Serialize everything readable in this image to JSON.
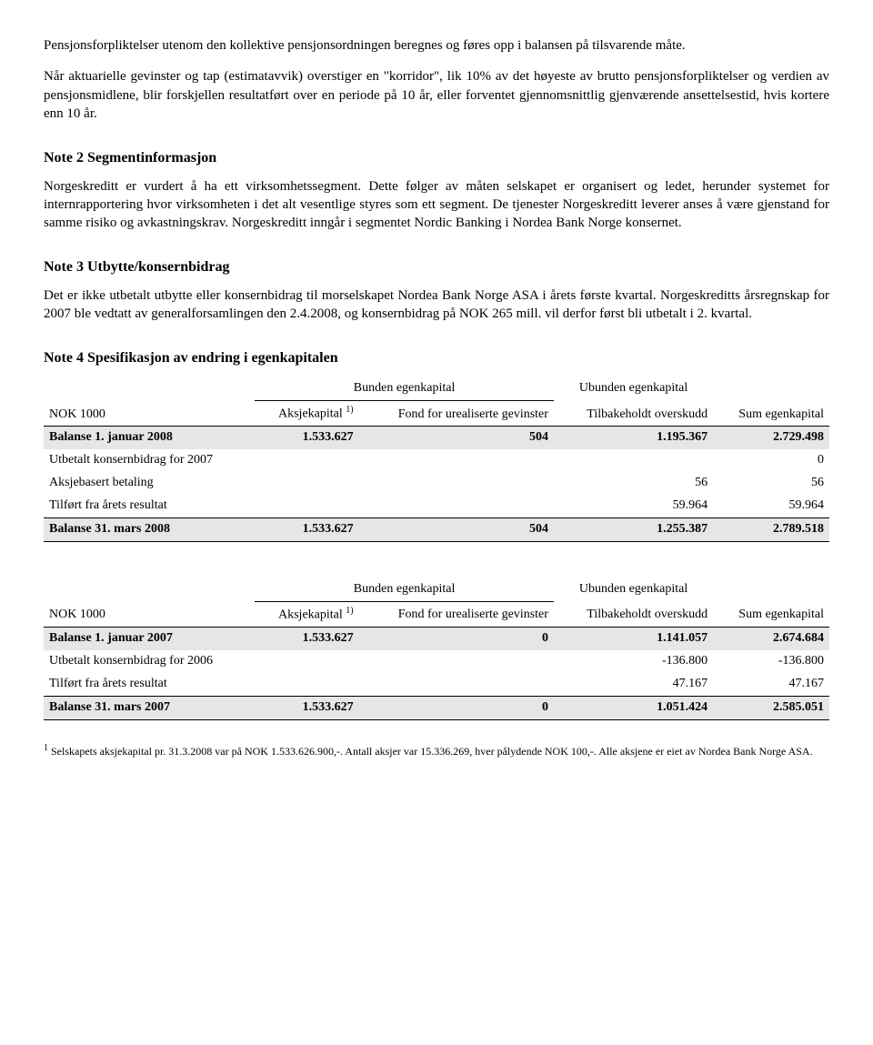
{
  "intro": {
    "p1": "Pensjonsforpliktelser utenom den kollektive pensjonsordningen beregnes og føres opp i balansen på tilsvarende måte.",
    "p2": "Når aktuarielle gevinster og tap (estimatavvik) overstiger en \"korridor\", lik 10% av det høyeste av brutto pensjonsforpliktelser og verdien av pensjonsmidlene, blir forskjellen resultatført over en periode på 10 år, eller forventet gjennomsnittlig gjenværende ansettelsestid, hvis kortere enn 10 år."
  },
  "note2": {
    "title": "Note 2 Segmentinformasjon",
    "body": "Norgeskreditt er vurdert å ha ett virksomhetssegment. Dette følger av måten selskapet er organisert og ledet, herunder systemet for internrapportering hvor virksomheten i det alt vesentlige styres som ett segment. De tjenester Norgeskreditt leverer anses å være gjenstand for samme risiko og avkastningskrav. Norgeskreditt inngår i segmentet Nordic Banking i Nordea Bank Norge konsernet."
  },
  "note3": {
    "title": "Note 3 Utbytte/konsernbidrag",
    "body": "Det er ikke utbetalt utbytte eller konsernbidrag til morselskapet Nordea Bank Norge ASA i årets første kvartal.  Norgeskreditts årsregnskap for 2007 ble vedtatt av generalforsamlingen den 2.4.2008, og konsernbidrag på NOK 265 mill. vil derfor først bli utbetalt i 2. kvartal."
  },
  "note4": {
    "title": "Note 4 Spesifikasjon av endring i egenkapitalen",
    "headers": {
      "nok": "NOK 1000",
      "bunden": "Bunden egenkapital",
      "ubunden": "Ubunden egenkapital",
      "aksje": "Aksjekapital",
      "aksje_sup": "1)",
      "fond": "Fond for urealiserte gevinster",
      "tilbake": "Tilbakeholdt overskudd",
      "sum": "Sum egenkapital"
    },
    "table1": {
      "rows": [
        {
          "label": "Balanse 1. januar 2008",
          "c1": "1.533.627",
          "c2": "504",
          "c3": "1.195.367",
          "c4": "2.729.498",
          "bold": true,
          "shade": true
        },
        {
          "label": "Utbetalt konsernbidrag for 2007",
          "c1": "",
          "c2": "",
          "c3": "",
          "c4": "0"
        },
        {
          "label": "Aksjebasert betaling",
          "c1": "",
          "c2": "",
          "c3": "56",
          "c4": "56"
        },
        {
          "label": "Tilført fra årets resultat",
          "c1": "",
          "c2": "",
          "c3": "59.964",
          "c4": "59.964"
        },
        {
          "label": "Balanse 31. mars 2008",
          "c1": "1.533.627",
          "c2": "504",
          "c3": "1.255.387",
          "c4": "2.789.518",
          "bold": true,
          "shade": true,
          "rule": true
        }
      ]
    },
    "table2": {
      "rows": [
        {
          "label": "Balanse 1. januar 2007",
          "c1": "1.533.627",
          "c2": "0",
          "c3": "1.141.057",
          "c4": "2.674.684",
          "bold": true,
          "shade": true
        },
        {
          "label": "Utbetalt konsernbidrag for 2006",
          "c1": "",
          "c2": "",
          "c3": "-136.800",
          "c4": "-136.800"
        },
        {
          "label": "Tilført fra årets resultat",
          "c1": "",
          "c2": "",
          "c3": "47.167",
          "c4": "47.167"
        },
        {
          "label": "Balanse 31. mars 2007",
          "c1": "1.533.627",
          "c2": "0",
          "c3": "1.051.424",
          "c4": "2.585.051",
          "bold": true,
          "shade": true,
          "rule": true
        }
      ]
    },
    "footnote_sup": "1",
    "footnote": " Selskapets aksjekapital pr. 31.3.2008 var på NOK 1.533.626.900,-. Antall aksjer var 15.336.269, hver pålydende NOK 100,-.  Alle aksjene er eiet av Nordea Bank Norge ASA."
  }
}
